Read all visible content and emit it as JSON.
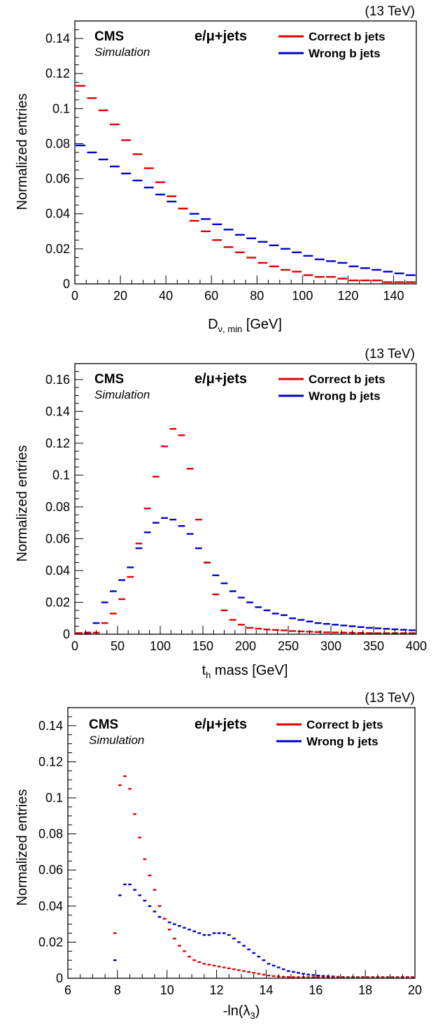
{
  "colors": {
    "correct": "#e00000",
    "wrong": "#0000d0",
    "axis": "#000000"
  },
  "charts": [
    {
      "energy": "(13 TeV)",
      "cms": "CMS",
      "simulation": "Simulation",
      "channel": "e/μ+jets",
      "xlabel_main": "D",
      "xlabel_sub": "ν, min",
      "xlabel_tail": " [GeV]",
      "ylabel": "Normalized entries",
      "xticks": [
        "0",
        "20",
        "40",
        "60",
        "80",
        "100",
        "120",
        "140"
      ],
      "yticks": [
        "0",
        "0.02",
        "0.04",
        "0.06",
        "0.08",
        "0.1",
        "0.12",
        "0.14"
      ]
    },
    {
      "energy": "(13 TeV)",
      "cms": "CMS",
      "simulation": "Simulation",
      "channel": "e/μ+jets",
      "xlabel_main": "t",
      "xlabel_sub": "h",
      "xlabel_tail": " mass [GeV]",
      "ylabel": "Normalized entries",
      "xticks": [
        "0",
        "50",
        "100",
        "150",
        "200",
        "250",
        "300",
        "350",
        "400"
      ],
      "yticks": [
        "0",
        "0.02",
        "0.04",
        "0.06",
        "0.08",
        "0.1",
        "0.12",
        "0.14",
        "0.16"
      ]
    },
    {
      "energy": "(13 TeV)",
      "cms": "CMS",
      "simulation": "Simulation",
      "channel": "e/μ+jets",
      "xlabel_main": "-ln(λ",
      "xlabel_sub": "3",
      "xlabel_tail": ")",
      "ylabel": "Normalized entries",
      "xticks": [
        "6",
        "8",
        "10",
        "12",
        "14",
        "16",
        "18",
        "20"
      ],
      "yticks": [
        "0",
        "0.02",
        "0.04",
        "0.06",
        "0.08",
        "0.1",
        "0.12",
        "0.14"
      ]
    }
  ],
  "chart_data": [
    {
      "type": "histogram",
      "xlabel": "Dν, min [GeV]",
      "ylabel": "Normalized entries",
      "xlim": [
        0,
        150
      ],
      "ylim": [
        0,
        0.15
      ],
      "bin_width": 5,
      "legend": "top-right",
      "series": [
        {
          "name": "Correct b jets",
          "color": "#e00000",
          "values": [
            0.113,
            0.106,
            0.099,
            0.091,
            0.082,
            0.074,
            0.066,
            0.058,
            0.05,
            0.043,
            0.036,
            0.03,
            0.025,
            0.021,
            0.018,
            0.015,
            0.012,
            0.01,
            0.008,
            0.007,
            0.005,
            0.004,
            0.004,
            0.003,
            0.002,
            0.002,
            0.002,
            0.001,
            0.001,
            0.001
          ]
        },
        {
          "name": "Wrong b jets",
          "color": "#0000d0",
          "values": [
            0.079,
            0.075,
            0.071,
            0.067,
            0.063,
            0.059,
            0.055,
            0.051,
            0.047,
            0.043,
            0.04,
            0.037,
            0.034,
            0.031,
            0.028,
            0.026,
            0.024,
            0.022,
            0.02,
            0.018,
            0.016,
            0.014,
            0.013,
            0.012,
            0.01,
            0.009,
            0.008,
            0.007,
            0.006,
            0.005
          ]
        }
      ]
    },
    {
      "type": "histogram",
      "xlabel": "th mass [GeV]",
      "ylabel": "Normalized entries",
      "xlim": [
        0,
        400
      ],
      "ylim": [
        0,
        0.17
      ],
      "bin_width": 10,
      "legend": "top-right",
      "series": [
        {
          "name": "Correct b jets",
          "color": "#e00000",
          "values": [
            0.0,
            0.0,
            0.001,
            0.007,
            0.013,
            0.022,
            0.036,
            0.057,
            0.079,
            0.099,
            0.118,
            0.129,
            0.125,
            0.104,
            0.072,
            0.045,
            0.025,
            0.015,
            0.009,
            0.006,
            0.004,
            0.0035,
            0.003,
            0.0027,
            0.0024,
            0.002,
            0.0018,
            0.0016,
            0.0014,
            0.0012,
            0.0011,
            0.001,
            0.0009,
            0.0008,
            0.0007,
            0.0006,
            0.0005,
            0.0005,
            0.0004,
            0.0004
          ]
        },
        {
          "name": "Wrong b jets",
          "color": "#0000d0",
          "values": [
            0.0,
            0.001,
            0.007,
            0.02,
            0.027,
            0.034,
            0.042,
            0.054,
            0.064,
            0.07,
            0.073,
            0.072,
            0.068,
            0.063,
            0.054,
            0.045,
            0.037,
            0.032,
            0.027,
            0.023,
            0.02,
            0.017,
            0.015,
            0.013,
            0.012,
            0.01,
            0.009,
            0.008,
            0.007,
            0.0065,
            0.006,
            0.0055,
            0.005,
            0.0045,
            0.004,
            0.0037,
            0.0034,
            0.0031,
            0.0028,
            0.0025
          ]
        }
      ]
    },
    {
      "type": "histogram",
      "xlabel": "-ln(λ3)",
      "ylabel": "Normalized entries",
      "xlim": [
        6,
        20
      ],
      "ylim": [
        0,
        0.15
      ],
      "bin_width": 0.2,
      "legend": "top-right",
      "series": [
        {
          "name": "Correct b jets",
          "color": "#e00000",
          "start": 7.8,
          "values": [
            0.025,
            0.107,
            0.112,
            0.105,
            0.091,
            0.078,
            0.066,
            0.057,
            0.049,
            0.04,
            0.033,
            0.027,
            0.022,
            0.018,
            0.015,
            0.012,
            0.01,
            0.009,
            0.008,
            0.0075,
            0.007,
            0.0065,
            0.006,
            0.0055,
            0.005,
            0.0045,
            0.004,
            0.0035,
            0.003,
            0.0025,
            0.002,
            0.0015,
            0.0012,
            0.001,
            0.0008,
            0.0007,
            0.0006,
            0.0005,
            0.0004,
            0.0003,
            0.0002,
            0.0002,
            0.0001,
            0.0001,
            0.0001,
            0.0001,
            0.0001,
            0.0001,
            0.0001,
            0.0001,
            0.0,
            0.0,
            0.0,
            0.0,
            0.0,
            0.0,
            0.0,
            0.0,
            0.0,
            0.0,
            0.0
          ]
        },
        {
          "name": "Wrong b jets",
          "color": "#0000d0",
          "start": 7.8,
          "values": [
            0.01,
            0.046,
            0.052,
            0.052,
            0.049,
            0.046,
            0.043,
            0.04,
            0.037,
            0.034,
            0.033,
            0.031,
            0.03,
            0.029,
            0.028,
            0.027,
            0.026,
            0.025,
            0.024,
            0.024,
            0.025,
            0.025,
            0.025,
            0.024,
            0.022,
            0.02,
            0.018,
            0.016,
            0.014,
            0.012,
            0.01,
            0.008,
            0.007,
            0.006,
            0.005,
            0.004,
            0.0035,
            0.003,
            0.0025,
            0.002,
            0.0018,
            0.0015,
            0.0013,
            0.0011,
            0.001,
            0.0008,
            0.0007,
            0.0006,
            0.0005,
            0.0004,
            0.0004,
            0.0003,
            0.0003,
            0.0002,
            0.0002,
            0.0002,
            0.0001,
            0.0001,
            0.0001,
            0.0001,
            0.0001
          ]
        }
      ]
    }
  ]
}
